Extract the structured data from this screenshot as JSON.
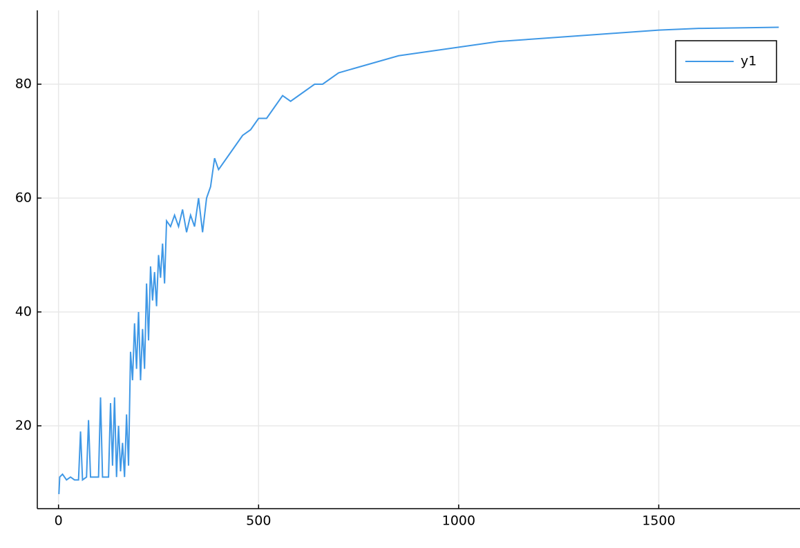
{
  "chart_data": {
    "type": "line",
    "x": [
      1,
      3,
      10,
      20,
      30,
      40,
      50,
      55,
      60,
      70,
      75,
      80,
      90,
      100,
      105,
      110,
      120,
      125,
      130,
      135,
      140,
      145,
      150,
      155,
      160,
      165,
      170,
      175,
      180,
      185,
      190,
      195,
      200,
      205,
      210,
      215,
      220,
      225,
      230,
      235,
      240,
      245,
      250,
      255,
      260,
      265,
      270,
      280,
      290,
      300,
      310,
      320,
      330,
      340,
      350,
      360,
      370,
      380,
      390,
      400,
      420,
      440,
      460,
      480,
      500,
      520,
      540,
      560,
      580,
      600,
      620,
      640,
      660,
      680,
      700,
      750,
      800,
      850,
      900,
      950,
      1000,
      1100,
      1200,
      1300,
      1400,
      1500,
      1600,
      1700,
      1800
    ],
    "series": [
      {
        "name": "y1",
        "color": "#3f98e6",
        "values": [
          8,
          11,
          11.5,
          10.5,
          11,
          10.5,
          10.5,
          19,
          10.5,
          11,
          21,
          11,
          11,
          11,
          25,
          11,
          11,
          11,
          24,
          13,
          25,
          11,
          20,
          12,
          17,
          11,
          22,
          13,
          33,
          28,
          38,
          30,
          40,
          28,
          37,
          30,
          45,
          35,
          48,
          42,
          47,
          41,
          50,
          46,
          52,
          45,
          56,
          55,
          57,
          55,
          58,
          54,
          57,
          55,
          60,
          54,
          60,
          62,
          67,
          65,
          67,
          69,
          71,
          72,
          74,
          74,
          76,
          78,
          77,
          78,
          79,
          80,
          80,
          81,
          82,
          83,
          84,
          85,
          85.5,
          86,
          86.5,
          87.5,
          88,
          88.5,
          89,
          89.5,
          89.8,
          89.9,
          90
        ]
      }
    ],
    "xlim": [
      -53,
      1853
    ],
    "ylim": [
      5.45,
      92.97
    ],
    "xticks": [
      0,
      500,
      1000,
      1500
    ],
    "yticks": [
      20,
      40,
      60,
      80
    ],
    "grid": true,
    "legend": "top-right"
  }
}
